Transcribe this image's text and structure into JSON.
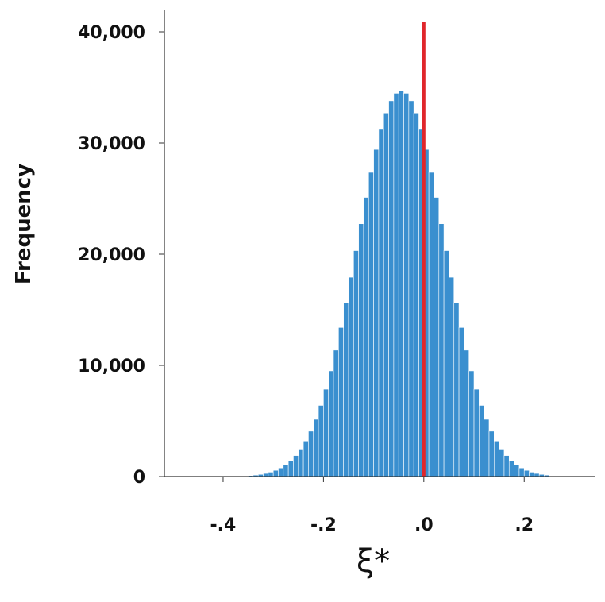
{
  "chart_data": {
    "type": "histogram",
    "x_label": "ξ*",
    "y_label": "Frequency",
    "bins": [
      -0.35,
      -0.34,
      -0.33,
      -0.32,
      -0.31,
      -0.3,
      -0.29,
      -0.28,
      -0.27,
      -0.26,
      -0.25,
      -0.24,
      -0.23,
      -0.22,
      -0.21,
      -0.2,
      -0.19,
      -0.18,
      -0.17,
      -0.16,
      -0.15,
      -0.14,
      -0.13,
      -0.12,
      -0.11,
      -0.1,
      -0.09,
      -0.08,
      -0.07,
      -0.06,
      -0.05,
      -0.04,
      -0.03,
      -0.02,
      -0.01,
      0.0,
      0.01,
      0.02,
      0.03,
      0.04,
      0.05,
      0.06,
      0.07,
      0.08,
      0.09,
      0.1,
      0.11,
      0.12,
      0.13,
      0.14,
      0.15,
      0.16,
      0.17,
      0.18,
      0.19,
      0.2,
      0.21,
      0.22,
      0.23,
      0.24,
      0.25
    ],
    "values": [
      91,
      134,
      196,
      281,
      399,
      559,
      772,
      1053,
      1419,
      1885,
      2471,
      3196,
      4081,
      5143,
      6395,
      7853,
      9504,
      11368,
      13405,
      15605,
      17923,
      20320,
      22735,
      25105,
      27357,
      29419,
      31220,
      32698,
      33794,
      34471,
      34700,
      34471,
      33794,
      32698,
      31220,
      29419,
      27357,
      25105,
      22735,
      20320,
      17923,
      15605,
      13405,
      11368,
      9504,
      7853,
      6395,
      5143,
      4081,
      3196,
      2471,
      1885,
      1419,
      1053,
      772,
      559,
      399,
      281,
      196,
      134
    ],
    "color": "#3a8fcf",
    "reference_line": {
      "value": 0,
      "color": "#e0262b"
    },
    "xlim": [
      -0.517,
      0.342
    ],
    "xticks": [
      {
        "value": -0.4,
        "label": "-.4"
      },
      {
        "value": -0.2,
        "label": "-.2"
      },
      {
        "value": 0,
        "label": ".0"
      },
      {
        "value": 0.2,
        "label": ".2"
      }
    ],
    "ylim": [
      0,
      42000
    ],
    "yticks": [
      0,
      {
        "value": 10000,
        "label": "10,000"
      },
      {
        "value": 20000,
        "label": "20,000"
      },
      {
        "value": 30000,
        "label": "30,000"
      },
      {
        "value": 40000,
        "label": "40,000"
      }
    ]
  }
}
